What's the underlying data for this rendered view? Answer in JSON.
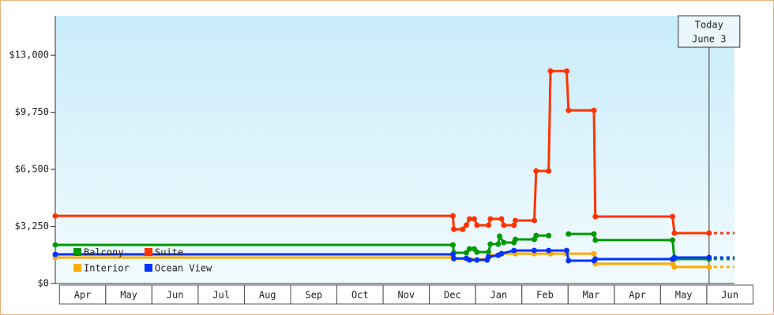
{
  "chart_data": {
    "type": "line",
    "step": true,
    "xlim": [
      -0.09,
      14.6
    ],
    "ylim": [
      0,
      15250
    ],
    "yticks": [
      {
        "value": 0,
        "label": "$0"
      },
      {
        "value": 3250,
        "label": "$3,250"
      },
      {
        "value": 6500,
        "label": "$6,500"
      },
      {
        "value": 9750,
        "label": "$9,750"
      },
      {
        "value": 13000,
        "label": "$13,000"
      }
    ],
    "xticks": [
      {
        "value": 0.5,
        "label": "Apr"
      },
      {
        "value": 1.5,
        "label": "May"
      },
      {
        "value": 2.5,
        "label": "Jun"
      },
      {
        "value": 3.5,
        "label": "Jul"
      },
      {
        "value": 4.5,
        "label": "Aug"
      },
      {
        "value": 5.5,
        "label": "Sep"
      },
      {
        "value": 6.5,
        "label": "Oct"
      },
      {
        "value": 7.5,
        "label": "Nov"
      },
      {
        "value": 8.5,
        "label": "Dec"
      },
      {
        "value": 9.5,
        "label": "Jan"
      },
      {
        "value": 10.5,
        "label": "Feb"
      },
      {
        "value": 11.5,
        "label": "Mar"
      },
      {
        "value": 12.5,
        "label": "Apr"
      },
      {
        "value": 13.5,
        "label": "May"
      },
      {
        "value": 14.5,
        "label": "Jun"
      }
    ],
    "today": {
      "x": 14.05,
      "label": [
        "Today",
        "June 3"
      ]
    },
    "series": [
      {
        "name": "Balcony",
        "color": "#009900",
        "x": [
          -0.09,
          8.51,
          8.53,
          8.8,
          8.87,
          8.97,
          9.03,
          9.28,
          9.32,
          9.49,
          9.52,
          9.61,
          9.83,
          9.86,
          10.27,
          10.31,
          10.58,
          10.8,
          11.01,
          11.56,
          11.59,
          13.26,
          13.3,
          14.05
        ],
        "values": [
          2200,
          2200,
          1750,
          1750,
          1970,
          1970,
          1790,
          1790,
          2240,
          2240,
          2690,
          2330,
          2330,
          2510,
          2510,
          2730,
          2730,
          null,
          2820,
          2820,
          2470,
          2470,
          1390,
          1390
        ]
      },
      {
        "name": "Suite",
        "color": "#ff3300",
        "x": [
          -0.09,
          8.51,
          8.53,
          8.72,
          8.8,
          8.87,
          8.97,
          9.03,
          9.28,
          9.32,
          9.56,
          9.61,
          9.83,
          9.86,
          10.27,
          10.31,
          10.58,
          10.62,
          10.97,
          11.01,
          11.56,
          11.59,
          13.26,
          13.3,
          14.05
        ],
        "values": [
          3850,
          3850,
          3090,
          3090,
          3320,
          3680,
          3680,
          3320,
          3320,
          3680,
          3680,
          3320,
          3320,
          3590,
          3590,
          6410,
          6410,
          12100,
          12100,
          9860,
          9860,
          3810,
          3810,
          2870,
          2870
        ]
      },
      {
        "name": "Interior",
        "color": "#ffaa00",
        "x": [
          -0.09,
          8.51,
          8.53,
          9.25,
          9.32,
          9.56,
          9.86,
          10.27,
          10.62,
          10.97,
          11.56,
          11.59,
          13.26,
          13.3,
          14.05
        ],
        "values": [
          1480,
          1480,
          1390,
          1390,
          1570,
          1700,
          1700,
          1700,
          1700,
          1700,
          1700,
          1120,
          1120,
          940,
          940
        ]
      },
      {
        "name": "Ocean View",
        "color": "#0033ff",
        "x": [
          -0.09,
          8.51,
          8.53,
          8.8,
          8.87,
          9.03,
          9.25,
          9.28,
          9.49,
          9.56,
          9.83,
          10.27,
          10.58,
          10.97,
          11.01,
          11.56,
          11.59,
          13.26,
          13.3,
          14.05
        ],
        "values": [
          1660,
          1660,
          1430,
          1430,
          1340,
          1340,
          1340,
          1520,
          1610,
          1700,
          1880,
          1880,
          1880,
          1880,
          1300,
          1300,
          1390,
          1390,
          1480,
          1480
        ]
      }
    ]
  }
}
